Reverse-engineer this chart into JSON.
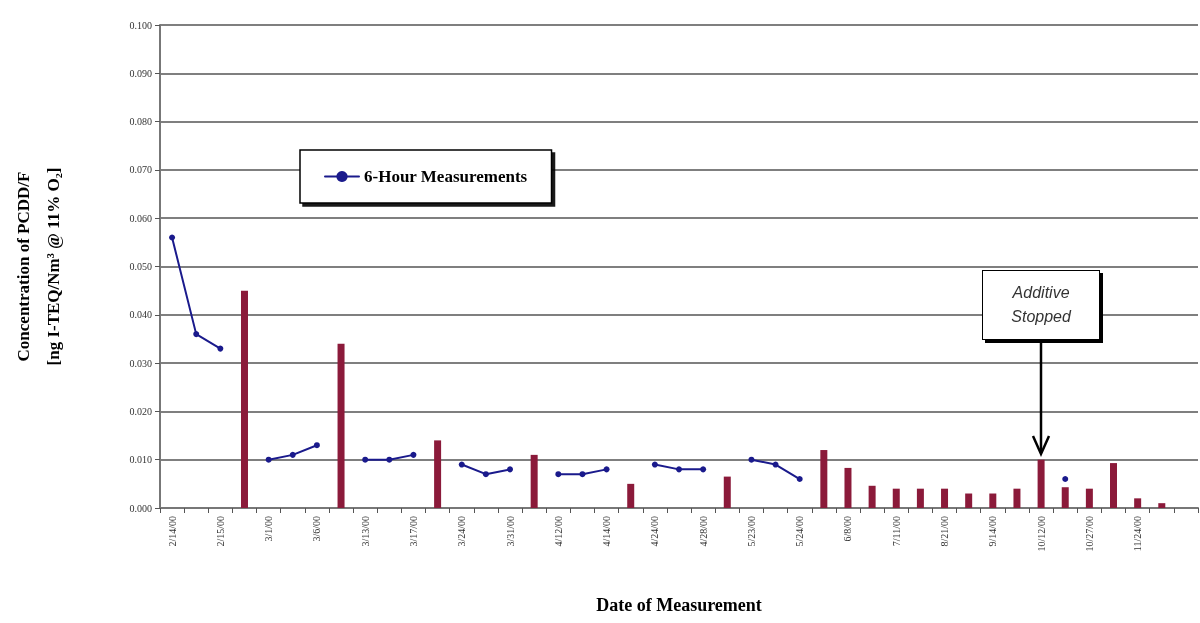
{
  "chart_data": {
    "type": "bar",
    "xlabel": "Date of Measurement",
    "ylabel": "Concentration of PCDD/F\n[ng I-TEQ/Nm³ @ 11% O₂]",
    "categories": [
      "2/14/00",
      null,
      "2/15/00",
      null,
      "3/1/00",
      null,
      "3/6/00",
      null,
      "3/13/00",
      null,
      "3/17/00",
      null,
      "3/24/00",
      null,
      "3/31/00",
      null,
      "4/12/00",
      null,
      "4/14/00",
      null,
      "4/24/00",
      null,
      "4/28/00",
      null,
      "5/23/00",
      null,
      "5/24/00",
      null,
      "6/8/00",
      null,
      "7/11/00",
      null,
      "8/21/00",
      null,
      "9/14/00",
      null,
      "10/12/00",
      null,
      "10/27/00",
      null,
      "11/24/00",
      null,
      null
    ],
    "series": [
      {
        "color": "#8b1a3a",
        "values": [
          null,
          null,
          null,
          0.045,
          null,
          null,
          null,
          0.034,
          null,
          null,
          null,
          0.014,
          null,
          null,
          null,
          0.011,
          null,
          null,
          null,
          0.005,
          null,
          null,
          null,
          0.0065,
          null,
          null,
          null,
          0.012,
          0.0083,
          0.0046,
          0.004,
          0.004,
          0.004,
          0.003,
          0.003,
          0.004,
          0.01,
          0.0043,
          0.004,
          0.0093,
          0.002,
          0.001,
          null
        ]
      },
      {
        "type": "line",
        "name": "6-Hour Measurements",
        "color": "#1a1a8c",
        "values": [
          0.056,
          0.036,
          0.033,
          null,
          0.01,
          0.011,
          0.013,
          null,
          0.01,
          0.01,
          0.011,
          null,
          0.009,
          0.007,
          0.008,
          null,
          0.007,
          0.007,
          0.008,
          null,
          0.009,
          0.008,
          0.008,
          null,
          0.01,
          0.009,
          0.006,
          null,
          null,
          null,
          null,
          null,
          null,
          null,
          null,
          null,
          null,
          0.006,
          null,
          null,
          null,
          null,
          null
        ]
      }
    ],
    "ylim": [
      0,
      0.1
    ],
    "yticks": [
      {
        "value": 0,
        "label": "0.000"
      },
      {
        "value": 0.01,
        "label": "0.010"
      },
      {
        "value": 0.02,
        "label": "0.020"
      },
      {
        "value": 0.03,
        "label": "0.030"
      },
      {
        "value": 0.04,
        "label": "0.040"
      },
      {
        "value": 0.05,
        "label": "0.050"
      },
      {
        "value": 0.06,
        "label": "0.060"
      },
      {
        "value": 0.07,
        "label": "0.070"
      },
      {
        "value": 0.08,
        "label": "0.080"
      },
      {
        "value": 0.09,
        "label": "0.090"
      },
      {
        "value": 0.1,
        "label": "0.100"
      }
    ],
    "grid": "y",
    "legend": "top",
    "marker": "circle",
    "line_style": "solid",
    "annotations": [
      {
        "text": "Additive Stopped",
        "x": "10/12/00",
        "y": 0.01
      }
    ]
  }
}
